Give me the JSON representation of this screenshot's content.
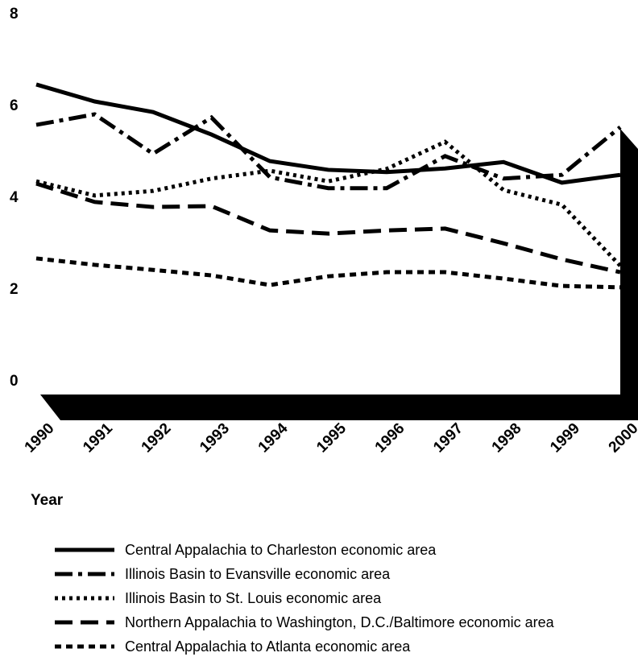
{
  "chart_data": {
    "type": "line",
    "x_label": "Year",
    "x": [
      1990,
      1991,
      1992,
      1993,
      1994,
      1995,
      1996,
      1997,
      1998,
      1999,
      2000
    ],
    "xlim": [
      1990,
      2000
    ],
    "xticks": [
      1990,
      1991,
      1992,
      1993,
      1994,
      1995,
      1996,
      1997,
      1998,
      1999,
      2000
    ],
    "ylim": [
      0,
      8
    ],
    "yticks": [
      0,
      2,
      4,
      6,
      8
    ],
    "series": [
      {
        "name": "Central Appalachia to Charleston economic area",
        "color": "#000000",
        "dash": "solid",
        "values": [
          6.44,
          6.07,
          5.84,
          5.35,
          4.77,
          4.58,
          4.53,
          4.61,
          4.75,
          4.3,
          4.47
        ]
      },
      {
        "name": "Illinois Basin to Evansville economic area",
        "color": "#000000",
        "dash": "dashdot",
        "values": [
          5.56,
          5.79,
          4.93,
          5.72,
          4.42,
          4.18,
          4.18,
          4.88,
          4.39,
          4.47,
          5.51
        ]
      },
      {
        "name": "Illinois Basin to St. Louis economic area",
        "color": "#000000",
        "dash": "dotted",
        "values": [
          4.33,
          4.02,
          4.12,
          4.39,
          4.56,
          4.33,
          4.6,
          5.19,
          4.14,
          3.82,
          2.49
        ]
      },
      {
        "name": "Northern Appalachia to Washington, D.C./Baltimore economic area",
        "color": "#000000",
        "dash": "longdash",
        "values": [
          4.28,
          3.88,
          3.77,
          3.79,
          3.26,
          3.19,
          3.26,
          3.3,
          2.98,
          2.63,
          2.35
        ]
      },
      {
        "name": "Central Appalachia to Atlanta economic area",
        "color": "#000000",
        "dash": "shortdash",
        "values": [
          2.65,
          2.51,
          2.4,
          2.28,
          2.07,
          2.26,
          2.35,
          2.35,
          2.21,
          2.05,
          2.02
        ]
      }
    ]
  }
}
